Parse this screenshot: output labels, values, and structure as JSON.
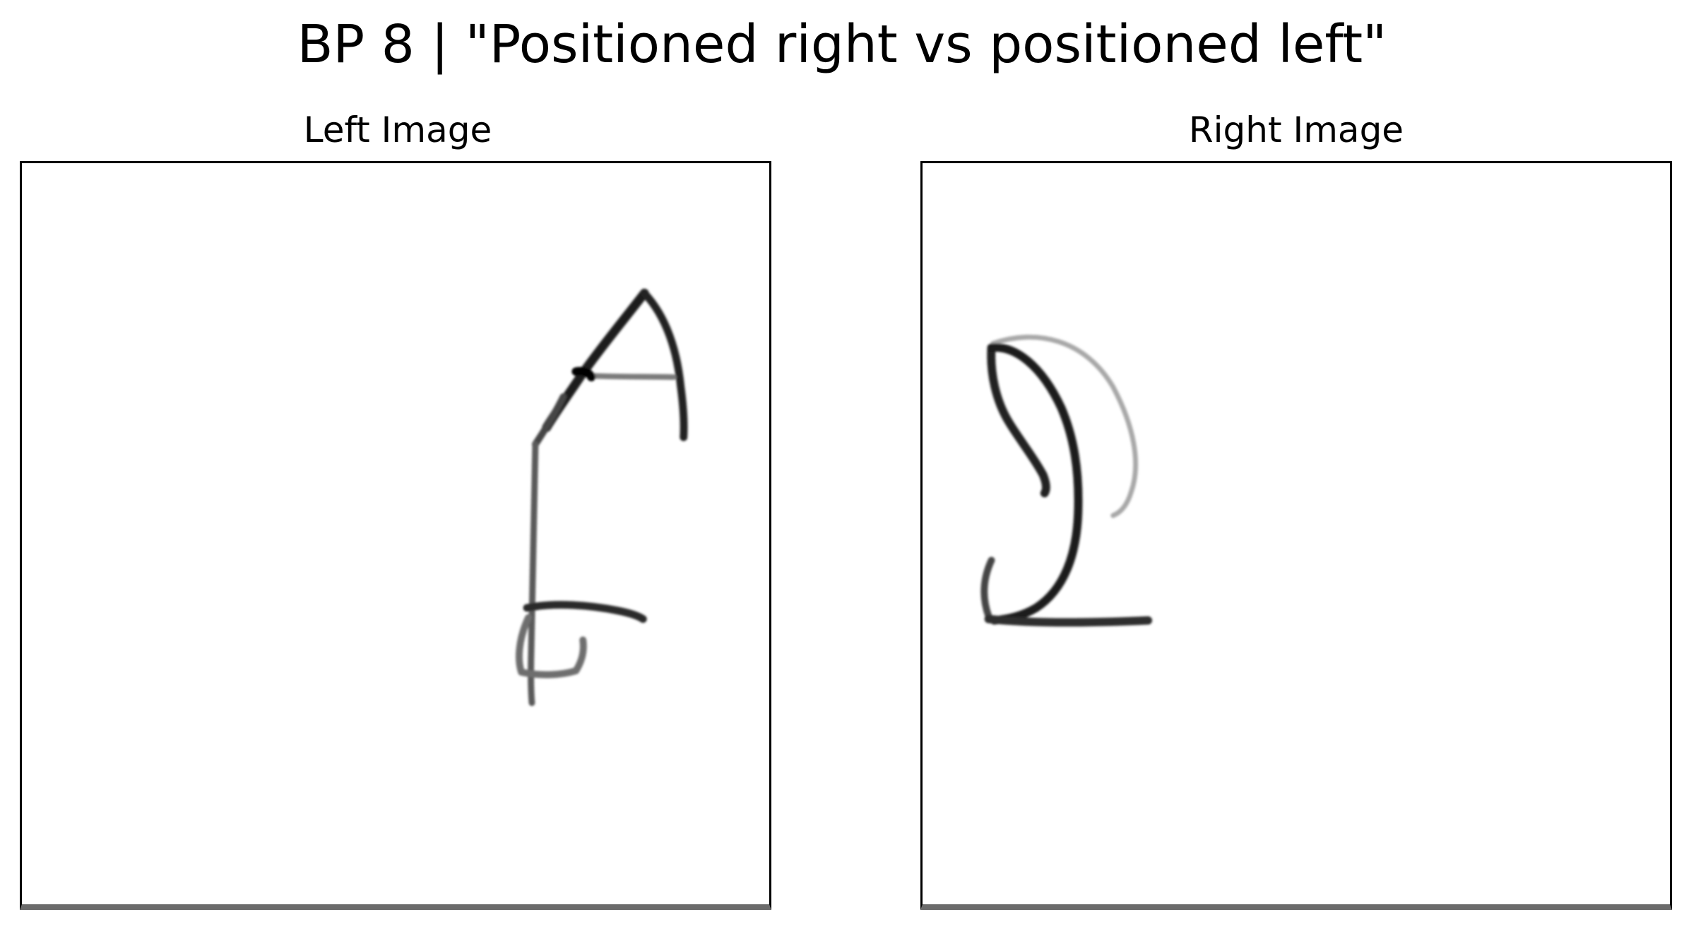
{
  "figure": {
    "title": "BP 8 | \"Positioned right vs positioned left\""
  },
  "panels": [
    {
      "title": "Left Image",
      "content": "handwritten-glyph-strokes"
    },
    {
      "title": "Right Image",
      "content": "handwritten-glyph-strokes"
    }
  ],
  "colors": {
    "background": "#ffffff",
    "frame": "#000000",
    "ink": "#1a1a1a",
    "faint_ink": "#b0b0b0",
    "bottom_edge": "#6b6b6b"
  }
}
